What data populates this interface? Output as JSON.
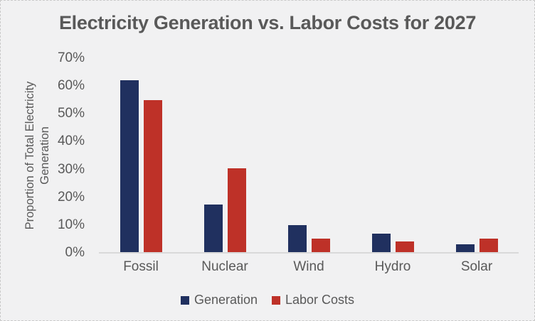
{
  "window": {
    "background": "#f1f1f2",
    "border_color": "#c9c9c9"
  },
  "chart_data": {
    "type": "bar",
    "title": "Electricity Generation vs. Labor Costs for 2027",
    "categories": [
      "Fossil",
      "Nuclear",
      "Wind",
      "Hydro",
      "Solar"
    ],
    "series": [
      {
        "name": "Generation",
        "color": "#20305f",
        "values": [
          62,
          17.5,
          10,
          7,
          3
        ]
      },
      {
        "name": "Labor Costs",
        "color": "#be3128",
        "values": [
          55,
          30.5,
          5,
          4,
          5
        ]
      }
    ],
    "xlabel": "",
    "ylabel": "Proportion of Total Electricity Generation",
    "ylabel_lines": [
      "Proportion of Total Electricity",
      "Generation"
    ],
    "y_ticks": [
      {
        "value": 0,
        "label": "0%"
      },
      {
        "value": 10,
        "label": "10%"
      },
      {
        "value": 20,
        "label": "20%"
      },
      {
        "value": 30,
        "label": "30%"
      },
      {
        "value": 40,
        "label": "40%"
      },
      {
        "value": 50,
        "label": "50%"
      },
      {
        "value": 60,
        "label": "60%"
      },
      {
        "value": 70,
        "label": "70%"
      }
    ],
    "ylim": [
      0,
      70
    ],
    "grid": false,
    "legend_position": "bottom",
    "colors": {
      "title_text": "#595959",
      "axis_text": "#595959",
      "axis_line": "#d9d9d9"
    }
  }
}
